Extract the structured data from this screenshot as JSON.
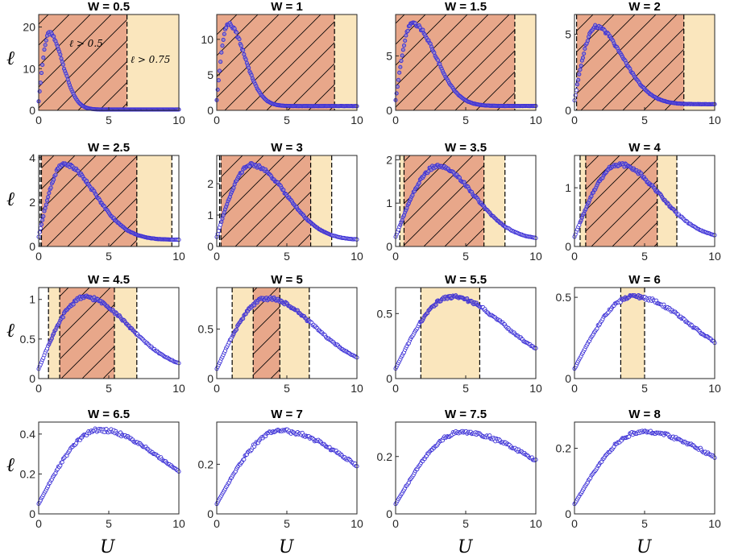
{
  "figure": {
    "ylabel": "ℓ",
    "xlabel": "U",
    "annotations": {
      "hatched_label": "ℓ > 0.5",
      "shaded_label": "ℓ > 0.75"
    },
    "colors": {
      "hatched_region": "#e8a78a",
      "shaded_region": "#fae6bd",
      "marker_edge": "#3b2fd6",
      "marker_face": "#9a86c2",
      "hatch_line": "#000000"
    }
  },
  "chart_data": [
    {
      "type": "scatter",
      "title": "W = 0.5",
      "xlim": [
        0,
        10
      ],
      "ylim": [
        0,
        23
      ],
      "xticks": [
        0,
        5,
        10
      ],
      "yticks": [
        0,
        10,
        20
      ],
      "series": [
        {
          "name": "ℓ vs U",
          "curve": {
            "peak_x": 0.75,
            "peak_y": 18.5,
            "rise": 0.4,
            "decay": 1.3,
            "base": 0.2
          }
        }
      ],
      "regions": {
        "hatched": [
          [
            0,
            6.3
          ]
        ],
        "shaded": [
          [
            6.3,
            10
          ]
        ]
      },
      "dashed_lines": [
        6.3
      ]
    },
    {
      "type": "scatter",
      "title": "W = 1",
      "xlim": [
        0,
        10
      ],
      "ylim": [
        0,
        13.5
      ],
      "xticks": [
        0,
        5,
        10
      ],
      "yticks": [
        0,
        5,
        10
      ],
      "series": [
        {
          "name": "ℓ vs U",
          "curve": {
            "peak_x": 0.8,
            "peak_y": 12.2,
            "rise": 0.35,
            "decay": 1.6,
            "base": 0.6
          }
        }
      ],
      "regions": {
        "hatched": [
          [
            0,
            8.4
          ]
        ],
        "shaded": [
          [
            8.4,
            10
          ]
        ]
      },
      "dashed_lines": [
        8.4
      ]
    },
    {
      "type": "scatter",
      "title": "W = 1.5",
      "xlim": [
        0,
        10
      ],
      "ylim": [
        0,
        8.8
      ],
      "xticks": [
        0,
        5,
        10
      ],
      "yticks": [
        0,
        5
      ],
      "series": [
        {
          "name": "ℓ vs U",
          "curve": {
            "peak_x": 1.2,
            "peak_y": 8.0,
            "rise": 0.6,
            "decay": 2.2,
            "base": 0.4
          }
        }
      ],
      "regions": {
        "hatched": [
          [
            0,
            8.5
          ]
        ],
        "shaded": [
          [
            8.5,
            10
          ]
        ]
      },
      "dashed_lines": [
        8.5
      ]
    },
    {
      "type": "scatter",
      "title": "W = 2",
      "xlim": [
        0,
        10
      ],
      "ylim": [
        0,
        6.3
      ],
      "xticks": [
        0,
        5,
        10
      ],
      "yticks": [
        0,
        5
      ],
      "series": [
        {
          "name": "ℓ vs U",
          "curve": {
            "peak_x": 1.5,
            "peak_y": 5.5,
            "rise": 0.8,
            "decay": 2.6,
            "base": 0.4
          }
        }
      ],
      "regions": {
        "hatched": [
          [
            0.15,
            7.8
          ]
        ],
        "shaded": [
          [
            7.8,
            10
          ]
        ]
      },
      "dashed_lines": [
        0.15,
        7.8
      ]
    },
    {
      "type": "scatter",
      "title": "W = 2.5",
      "xlim": [
        0,
        10
      ],
      "ylim": [
        0,
        4.1
      ],
      "xticks": [
        0,
        5,
        10
      ],
      "yticks": [
        0,
        2,
        4
      ],
      "series": [
        {
          "name": "ℓ vs U",
          "curve": {
            "peak_x": 1.8,
            "peak_y": 3.7,
            "rise": 0.9,
            "decay": 3.0,
            "base": 0.3
          }
        }
      ],
      "regions": {
        "hatched": [
          [
            0.2,
            7.0
          ]
        ],
        "shaded": [
          [
            7.0,
            9.5
          ]
        ]
      },
      "dashed_lines": [
        0.1,
        0.2,
        7.0,
        9.5
      ]
    },
    {
      "type": "scatter",
      "title": "W = 3",
      "xlim": [
        0,
        10
      ],
      "ylim": [
        0,
        2.9
      ],
      "xticks": [
        0,
        5,
        10
      ],
      "yticks": [
        0,
        1,
        2
      ],
      "series": [
        {
          "name": "ℓ vs U",
          "curve": {
            "peak_x": 2.5,
            "peak_y": 2.6,
            "rise": 1.3,
            "decay": 3.3,
            "base": 0.2
          }
        }
      ],
      "regions": {
        "hatched": [
          [
            0.3,
            6.7
          ]
        ],
        "shaded": [
          [
            6.7,
            8.2
          ]
        ]
      },
      "dashed_lines": [
        0.2,
        0.3,
        6.7,
        8.2
      ]
    },
    {
      "type": "scatter",
      "title": "W = 3.5",
      "xlim": [
        0,
        10
      ],
      "ylim": [
        0,
        2.1
      ],
      "xticks": [
        0,
        5,
        10
      ],
      "yticks": [
        0,
        1,
        2
      ],
      "series": [
        {
          "name": "ℓ vs U",
          "curve": {
            "peak_x": 3.0,
            "peak_y": 1.85,
            "rise": 1.5,
            "decay": 3.5,
            "base": 0.15
          }
        }
      ],
      "regions": {
        "hatched": [
          [
            0.6,
            6.3
          ]
        ],
        "shaded": [
          [
            0.3,
            0.6
          ],
          [
            6.3,
            7.8
          ]
        ]
      },
      "dashed_lines": [
        0.3,
        0.6,
        6.3,
        7.8
      ]
    },
    {
      "type": "scatter",
      "title": "W = 4",
      "xlim": [
        0,
        10
      ],
      "ylim": [
        0,
        1.55
      ],
      "xticks": [
        0,
        5,
        10
      ],
      "yticks": [
        0,
        1
      ],
      "series": [
        {
          "name": "ℓ vs U",
          "curve": {
            "peak_x": 3.2,
            "peak_y": 1.4,
            "rise": 1.8,
            "decay": 3.8,
            "base": 0.12
          }
        }
      ],
      "regions": {
        "hatched": [
          [
            0.8,
            5.9
          ]
        ],
        "shaded": [
          [
            0.4,
            0.8
          ],
          [
            5.9,
            7.3
          ]
        ]
      },
      "dashed_lines": [
        0.4,
        0.8,
        5.9,
        7.3
      ]
    },
    {
      "type": "scatter",
      "title": "W = 4.5",
      "xlim": [
        0,
        10
      ],
      "ylim": [
        0,
        1.15
      ],
      "xticks": [
        0,
        5,
        10
      ],
      "yticks": [
        0,
        0.5,
        1
      ],
      "series": [
        {
          "name": "ℓ vs U",
          "curve": {
            "peak_x": 3.3,
            "peak_y": 1.03,
            "rise": 2.2,
            "decay": 4.2,
            "base": 0.1
          }
        }
      ],
      "regions": {
        "hatched": [
          [
            1.5,
            5.4
          ]
        ],
        "shaded": [
          [
            0.7,
            1.5
          ],
          [
            5.4,
            7.0
          ]
        ]
      },
      "dashed_lines": [
        0.7,
        1.5,
        5.4,
        7.0
      ]
    },
    {
      "type": "scatter",
      "title": "W = 5",
      "xlim": [
        0,
        10
      ],
      "ylim": [
        0,
        0.92
      ],
      "xticks": [
        0,
        5,
        10
      ],
      "yticks": [
        0,
        0.5
      ],
      "series": [
        {
          "name": "ℓ vs U",
          "curve": {
            "peak_x": 3.6,
            "peak_y": 0.81,
            "rise": 2.5,
            "decay": 4.5,
            "base": 0.1
          }
        }
      ],
      "regions": {
        "hatched": [
          [
            2.6,
            4.5
          ]
        ],
        "shaded": [
          [
            1.1,
            2.6
          ],
          [
            4.5,
            6.6
          ]
        ]
      },
      "dashed_lines": [
        1.1,
        2.6,
        4.5,
        6.6
      ]
    },
    {
      "type": "scatter",
      "title": "W = 5.5",
      "xlim": [
        0,
        10
      ],
      "ylim": [
        0,
        0.7
      ],
      "xticks": [
        0,
        5,
        10
      ],
      "yticks": [
        0,
        0.5
      ],
      "series": [
        {
          "name": "ℓ vs U",
          "curve": {
            "peak_x": 4.0,
            "peak_y": 0.63,
            "rise": 3.0,
            "decay": 5.0,
            "base": 0.08
          }
        }
      ],
      "regions": {
        "hatched": [],
        "shaded": [
          [
            1.8,
            6.0
          ]
        ]
      },
      "dashed_lines": [
        1.8,
        6.0
      ]
    },
    {
      "type": "scatter",
      "title": "W = 6",
      "xlim": [
        0,
        10
      ],
      "ylim": [
        0,
        0.56
      ],
      "xticks": [
        0,
        5,
        10
      ],
      "yticks": [
        0,
        0.5
      ],
      "series": [
        {
          "name": "ℓ vs U",
          "curve": {
            "peak_x": 4.2,
            "peak_y": 0.505,
            "rise": 3.3,
            "decay": 5.5,
            "base": 0.06
          }
        }
      ],
      "regions": {
        "hatched": [],
        "shaded": [
          [
            3.3,
            5.0
          ]
        ]
      },
      "dashed_lines": [
        3.3,
        5.0
      ]
    },
    {
      "type": "scatter",
      "title": "W = 6.5",
      "xlim": [
        0,
        10
      ],
      "ylim": [
        0,
        0.46
      ],
      "xticks": [
        0,
        5,
        10
      ],
      "yticks": [
        0,
        0.2,
        0.4
      ],
      "series": [
        {
          "name": "ℓ vs U",
          "curve": {
            "peak_x": 4.3,
            "peak_y": 0.42,
            "rise": 3.5,
            "decay": 6.0,
            "base": 0.05
          }
        }
      ],
      "regions": {
        "hatched": [],
        "shaded": []
      },
      "dashed_lines": []
    },
    {
      "type": "scatter",
      "title": "W = 7",
      "xlim": [
        0,
        10
      ],
      "ylim": [
        0,
        0.37
      ],
      "xticks": [
        0,
        5,
        10
      ],
      "yticks": [
        0,
        0.2
      ],
      "series": [
        {
          "name": "ℓ vs U",
          "curve": {
            "peak_x": 4.5,
            "peak_y": 0.335,
            "rise": 3.8,
            "decay": 6.5,
            "base": 0.04
          }
        }
      ],
      "regions": {
        "hatched": [],
        "shaded": []
      },
      "dashed_lines": []
    },
    {
      "type": "scatter",
      "title": "W = 7.5",
      "xlim": [
        0,
        10
      ],
      "ylim": [
        0,
        0.32
      ],
      "xticks": [
        0,
        5,
        10
      ],
      "yticks": [
        0,
        0.2
      ],
      "series": [
        {
          "name": "ℓ vs U",
          "curve": {
            "peak_x": 4.7,
            "peak_y": 0.285,
            "rise": 4.0,
            "decay": 7.0,
            "base": 0.04
          }
        }
      ],
      "regions": {
        "hatched": [],
        "shaded": []
      },
      "dashed_lines": []
    },
    {
      "type": "scatter",
      "title": "W = 8",
      "xlim": [
        0,
        10
      ],
      "ylim": [
        0,
        0.28
      ],
      "xticks": [
        0,
        5,
        10
      ],
      "yticks": [
        0,
        0.2
      ],
      "series": [
        {
          "name": "ℓ vs U",
          "curve": {
            "peak_x": 4.8,
            "peak_y": 0.25,
            "rise": 4.2,
            "decay": 7.5,
            "base": 0.03
          }
        }
      ],
      "regions": {
        "hatched": [],
        "shaded": []
      },
      "dashed_lines": []
    }
  ]
}
